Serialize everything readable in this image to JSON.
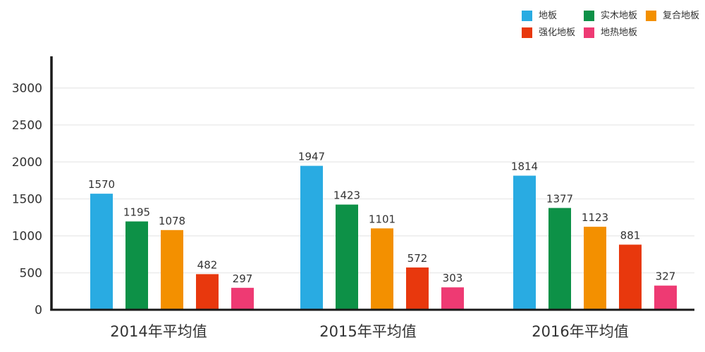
{
  "chart_data": {
    "type": "bar",
    "title": "",
    "xlabel": "",
    "ylabel": "",
    "categories": [
      "2014年平均值",
      "2015年平均值",
      "2016年平均值"
    ],
    "series": [
      {
        "name": "地板",
        "color": "#29abe2",
        "values": [
          1570,
          1947,
          1814
        ]
      },
      {
        "name": "实木地板",
        "color": "#0d9147",
        "values": [
          1195,
          1423,
          1377
        ]
      },
      {
        "name": "复合地板",
        "color": "#f39000",
        "values": [
          1078,
          1101,
          1123
        ]
      },
      {
        "name": "强化地板",
        "color": "#e8380d",
        "values": [
          482,
          572,
          881
        ]
      },
      {
        "name": "地热地板",
        "color": "#ee3a73",
        "values": [
          297,
          303,
          327
        ]
      }
    ],
    "ylim": [
      0,
      3000
    ],
    "yticks": [
      0,
      500,
      1000,
      1500,
      2000,
      2500,
      3000
    ],
    "grid": true,
    "value_labels": true,
    "legend_position": "top-right"
  },
  "colors": {
    "axis": "#1a1a1a",
    "grid": "#ececec",
    "tick_text": "#333333",
    "value_text": "#333333",
    "category_text": "#333333",
    "background": "#ffffff"
  }
}
